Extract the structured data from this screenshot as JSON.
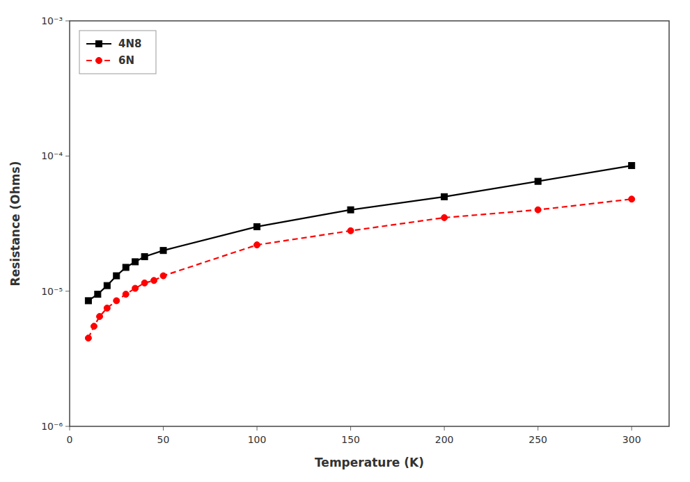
{
  "chart_data": {
    "type": "line",
    "xlabel": "Temperature (K)",
    "ylabel": "Resistance (Ohms)",
    "log": "y",
    "legend": "upper left",
    "xlim": [
      0,
      320
    ],
    "xticks": [
      0,
      50,
      100,
      150,
      200,
      250,
      300
    ],
    "ylim": [
      1e-06,
      0.001
    ],
    "yticks": [
      {
        "value": 1e-06,
        "label": "10⁻⁶"
      },
      {
        "value": 1e-05,
        "label": "10⁻⁵"
      },
      {
        "value": 0.0001,
        "label": "10⁻⁴"
      },
      {
        "value": 0.001,
        "label": "10⁻³"
      }
    ],
    "series": [
      {
        "name": "4N8",
        "color": "#000000",
        "marker": "square",
        "line_style": "solid",
        "x": [
          10,
          15,
          20,
          25,
          30,
          35,
          40,
          50,
          100,
          150,
          200,
          250,
          300
        ],
        "values": [
          8.5e-06,
          9.5e-06,
          1.1e-05,
          1.3e-05,
          1.5e-05,
          1.65e-05,
          1.8e-05,
          2e-05,
          3e-05,
          4e-05,
          5e-05,
          6.5e-05,
          8.5e-05
        ]
      },
      {
        "name": "6N",
        "color": "#ff0000",
        "marker": "circle",
        "line_style": "dashed",
        "x": [
          10,
          13,
          16,
          20,
          25,
          30,
          35,
          40,
          45,
          50,
          100,
          150,
          200,
          250,
          300
        ],
        "values": [
          4.5e-06,
          5.5e-06,
          6.5e-06,
          7.5e-06,
          8.5e-06,
          9.5e-06,
          1.05e-05,
          1.15e-05,
          1.2e-05,
          1.3e-05,
          2.2e-05,
          2.8e-05,
          3.5e-05,
          4e-05,
          4.8e-05
        ]
      }
    ]
  }
}
